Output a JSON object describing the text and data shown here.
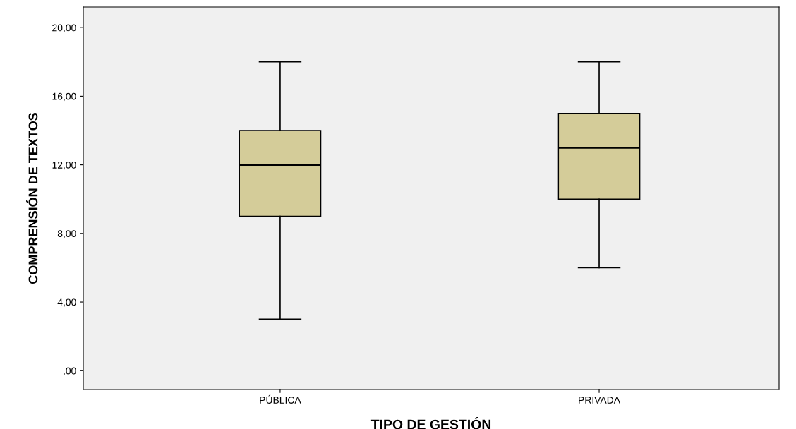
{
  "chart_data": {
    "type": "box",
    "xlabel": "TIPO DE GESTIÓN",
    "ylabel": "COMPRENSIÓN DE TEXTOS",
    "categories": [
      "PÚBLICA",
      "PRIVADA"
    ],
    "boxes": [
      {
        "low": 3,
        "q1": 9,
        "median": 12,
        "q3": 14,
        "high": 18
      },
      {
        "low": 6,
        "q1": 10,
        "median": 13,
        "q3": 15,
        "high": 18
      }
    ],
    "color": "#d4cc99",
    "ylim": [
      -1.1,
      21.2
    ],
    "yticks": [
      {
        "value": 0,
        "label": ",00"
      },
      {
        "value": 4,
        "label": "4,00"
      },
      {
        "value": 8,
        "label": "8,00"
      },
      {
        "value": 12,
        "label": "12,00"
      },
      {
        "value": 16,
        "label": "16,00"
      },
      {
        "value": 20,
        "label": "20,00"
      }
    ],
    "grid": false
  }
}
